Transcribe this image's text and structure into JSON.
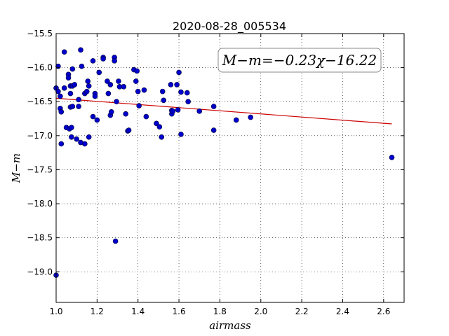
{
  "chart_data": {
    "type": "scatter",
    "title": "2020-08-28_005534",
    "xlabel": "airmass",
    "ylabel": "M−m",
    "xlim": [
      1.0,
      2.7
    ],
    "ylim": [
      -15.5,
      -19.45
    ],
    "y_inverted": true,
    "grid": true,
    "xticks": [
      1.0,
      1.2,
      1.4,
      1.6,
      1.8,
      2.0,
      2.2,
      2.4,
      2.6
    ],
    "xtick_labels": [
      "1.0",
      "1.2",
      "1.4",
      "1.6",
      "1.8",
      "2.0",
      "2.2",
      "2.4",
      "2.6"
    ],
    "yticks": [
      -15.5,
      -16.0,
      -16.5,
      -17.0,
      -17.5,
      -18.0,
      -18.5,
      -19.0
    ],
    "ytick_labels": [
      "−15.5",
      "−16.0",
      "−16.5",
      "−17.0",
      "−17.5",
      "−18.0",
      "−18.5",
      "−19.0"
    ],
    "annotation": "M−m=−0.23χ−16.22",
    "marker_color": "#0000cc",
    "fit_color": "#cc0000",
    "fit_line": {
      "slope": -0.23,
      "intercept": -16.22,
      "x": [
        1.0,
        2.64
      ]
    },
    "points": [
      [
        1.0,
        -16.3
      ],
      [
        1.01,
        -15.98
      ],
      [
        1.01,
        -16.35
      ],
      [
        1.0,
        -19.05
      ],
      [
        1.02,
        -16.42
      ],
      [
        1.02,
        -16.6
      ],
      [
        1.025,
        -16.65
      ],
      [
        1.025,
        -17.12
      ],
      [
        1.04,
        -15.77
      ],
      [
        1.04,
        -16.3
      ],
      [
        1.05,
        -16.88
      ],
      [
        1.06,
        -16.1
      ],
      [
        1.06,
        -16.15
      ],
      [
        1.065,
        -16.9
      ],
      [
        1.07,
        -16.27
      ],
      [
        1.07,
        -16.38
      ],
      [
        1.07,
        -16.58
      ],
      [
        1.075,
        -16.88
      ],
      [
        1.075,
        -17.02
      ],
      [
        1.08,
        -16.02
      ],
      [
        1.08,
        -16.27
      ],
      [
        1.08,
        -16.57
      ],
      [
        1.09,
        -16.25
      ],
      [
        1.1,
        -17.05
      ],
      [
        1.11,
        -16.47
      ],
      [
        1.11,
        -16.57
      ],
      [
        1.12,
        -15.74
      ],
      [
        1.12,
        -17.1
      ],
      [
        1.125,
        -15.98
      ],
      [
        1.14,
        -16.38
      ],
      [
        1.14,
        -17.12
      ],
      [
        1.15,
        -16.35
      ],
      [
        1.155,
        -16.2
      ],
      [
        1.16,
        -16.27
      ],
      [
        1.16,
        -17.02
      ],
      [
        1.18,
        -15.9
      ],
      [
        1.18,
        -16.72
      ],
      [
        1.19,
        -16.38
      ],
      [
        1.19,
        -16.42
      ],
      [
        1.2,
        -16.77
      ],
      [
        1.21,
        -16.07
      ],
      [
        1.23,
        -15.85
      ],
      [
        1.23,
        -15.87
      ],
      [
        1.25,
        -16.2
      ],
      [
        1.255,
        -16.38
      ],
      [
        1.265,
        -16.25
      ],
      [
        1.265,
        -16.7
      ],
      [
        1.27,
        -16.65
      ],
      [
        1.285,
        -15.85
      ],
      [
        1.285,
        -15.9
      ],
      [
        1.29,
        -18.55
      ],
      [
        1.295,
        -16.5
      ],
      [
        1.305,
        -16.2
      ],
      [
        1.31,
        -16.28
      ],
      [
        1.33,
        -16.28
      ],
      [
        1.34,
        -16.68
      ],
      [
        1.35,
        -16.93
      ],
      [
        1.355,
        -16.92
      ],
      [
        1.38,
        -16.03
      ],
      [
        1.39,
        -16.2
      ],
      [
        1.395,
        -16.05
      ],
      [
        1.4,
        -16.35
      ],
      [
        1.405,
        -16.56
      ],
      [
        1.43,
        -16.33
      ],
      [
        1.44,
        -16.72
      ],
      [
        1.49,
        -16.82
      ],
      [
        1.505,
        -16.87
      ],
      [
        1.515,
        -17.02
      ],
      [
        1.52,
        -16.35
      ],
      [
        1.525,
        -16.48
      ],
      [
        1.56,
        -16.25
      ],
      [
        1.565,
        -16.63
      ],
      [
        1.565,
        -16.68
      ],
      [
        1.57,
        -16.64
      ],
      [
        1.59,
        -16.25
      ],
      [
        1.595,
        -16.62
      ],
      [
        1.6,
        -16.07
      ],
      [
        1.61,
        -16.36
      ],
      [
        1.61,
        -16.98
      ],
      [
        1.64,
        -16.37
      ],
      [
        1.645,
        -16.5
      ],
      [
        1.7,
        -16.64
      ],
      [
        1.77,
        -16.57
      ],
      [
        1.77,
        -16.92
      ],
      [
        1.88,
        -16.77
      ],
      [
        1.95,
        -16.73
      ],
      [
        2.64,
        -17.32
      ]
    ]
  }
}
